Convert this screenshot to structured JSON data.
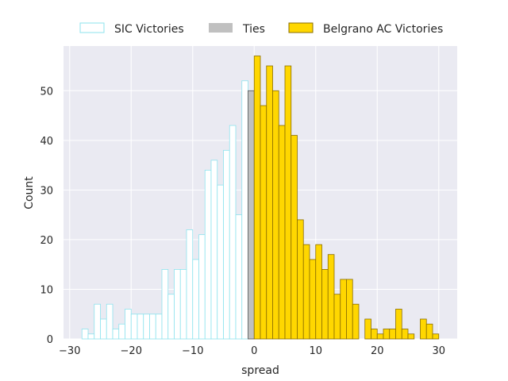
{
  "chart_data": {
    "type": "bar",
    "xlabel": "spread",
    "ylabel": "Count",
    "xlim": [
      -31,
      33
    ],
    "ylim": [
      0,
      59
    ],
    "xticks": [
      -30,
      -20,
      -10,
      0,
      10,
      20,
      30
    ],
    "yticks": [
      0,
      10,
      20,
      30,
      40,
      50
    ],
    "xtick_labels": [
      "−30",
      "−20",
      "−10",
      "0",
      "10",
      "20",
      "30"
    ],
    "ytick_labels": [
      "0",
      "10",
      "20",
      "30",
      "40",
      "50"
    ],
    "bin_width": 1,
    "grid": true,
    "legend_position": "top-center",
    "series": [
      {
        "name": "SIC Victories",
        "style": "outline",
        "fill": "#ffffff",
        "edge": "#8ee3ee",
        "x": [
          -28,
          -27,
          -26,
          -25,
          -24,
          -23,
          -22,
          -21,
          -20,
          -19,
          -18,
          -17,
          -16,
          -15,
          -14,
          -13,
          -12,
          -11,
          -10,
          -9,
          -8,
          -7,
          -6,
          -5,
          -4,
          -3,
          -2,
          -1
        ],
        "values": [
          2,
          1,
          7,
          4,
          7,
          2,
          3,
          6,
          5,
          5,
          5,
          5,
          5,
          14,
          9,
          14,
          14,
          22,
          16,
          21,
          34,
          36,
          31,
          38,
          43,
          25,
          52,
          0
        ]
      },
      {
        "name": "Ties",
        "style": "filled",
        "fill": "#c0c0c0",
        "edge": "#555555",
        "x": [
          -1
        ],
        "values": [
          50
        ]
      },
      {
        "name": "Belgrano AC Victories",
        "style": "filled",
        "fill": "#ffd700",
        "edge": "#8a6d00",
        "x": [
          0,
          1,
          2,
          3,
          4,
          5,
          6,
          7,
          8,
          9,
          10,
          11,
          12,
          13,
          14,
          15,
          16,
          17,
          18,
          19,
          20,
          21,
          22,
          23,
          24,
          25,
          26,
          27,
          28,
          29,
          30
        ],
        "values": [
          57,
          47,
          55,
          50,
          43,
          55,
          41,
          24,
          19,
          16,
          19,
          14,
          17,
          9,
          12,
          12,
          7,
          0,
          4,
          2,
          1,
          2,
          2,
          6,
          2,
          1,
          0,
          4,
          3,
          1,
          0
        ]
      }
    ]
  },
  "colors": {
    "plot_background": "#eaeaf2",
    "grid": "#ffffff",
    "text": "#262626"
  }
}
